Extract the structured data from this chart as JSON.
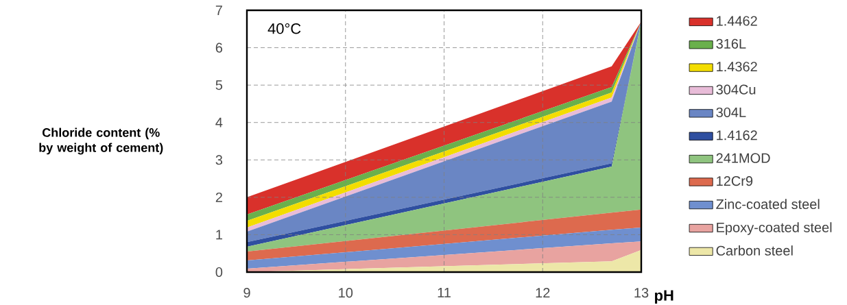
{
  "chart_data": {
    "type": "area",
    "stacked": true,
    "xlabel": "pH",
    "ylabel": "Chloride content (% by weight of cement)",
    "annotations": [
      "40°C"
    ],
    "x": [
      9,
      12.7,
      13
    ],
    "xlim": [
      9,
      13
    ],
    "xticks": [
      9,
      10,
      11,
      12,
      13
    ],
    "ylim": [
      0,
      7
    ],
    "yticks": [
      0,
      1,
      2,
      3,
      4,
      5,
      6,
      7
    ],
    "grid": true,
    "legend": "right",
    "series": [
      {
        "name": "Carbon steel",
        "color": "#ede7a8",
        "values": [
          0,
          0.29,
          0.59
        ]
      },
      {
        "name": "Epoxy-coated steel",
        "color": "#e8a3a0",
        "values": [
          0.09,
          0.48,
          0.23
        ]
      },
      {
        "name": "Zinc-coated steel",
        "color": "#6f8fcf",
        "values": [
          0.22,
          0.36,
          0.37
        ]
      },
      {
        "name": "12Cr9",
        "color": "#dd6a4e",
        "values": [
          0.24,
          0.46,
          0.48
        ]
      },
      {
        "name": "241MOD",
        "color": "#8fc47f",
        "values": [
          0.13,
          1.23,
          5.03
        ]
      },
      {
        "name": "1.4162",
        "color": "#2f4fa0",
        "values": [
          0.12,
          0.09,
          0
        ]
      },
      {
        "name": "304L",
        "color": "#6a86c4",
        "values": [
          0.28,
          1.65,
          0
        ]
      },
      {
        "name": "304Cu",
        "color": "#e8bcd8",
        "values": [
          0.11,
          0.11,
          0
        ]
      },
      {
        "name": "1.4362",
        "color": "#f3dd00",
        "values": [
          0.18,
          0.13,
          0
        ]
      },
      {
        "name": "316L",
        "color": "#6ab04c",
        "values": [
          0.17,
          0.15,
          0
        ]
      },
      {
        "name": "1.4462",
        "color": "#d9312b",
        "values": [
          0.46,
          0.55,
          0
        ]
      }
    ]
  }
}
